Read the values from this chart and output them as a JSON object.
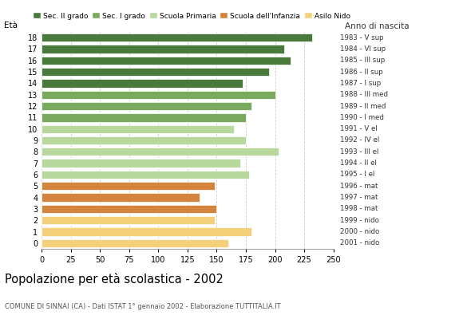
{
  "ages": [
    18,
    17,
    16,
    15,
    14,
    13,
    12,
    11,
    10,
    9,
    8,
    7,
    6,
    5,
    4,
    3,
    2,
    1,
    0
  ],
  "values": [
    232,
    208,
    213,
    195,
    172,
    200,
    180,
    175,
    165,
    175,
    203,
    170,
    178,
    148,
    135,
    150,
    148,
    180,
    160
  ],
  "right_labels": [
    "1983 - V sup",
    "1984 - VI sup",
    "1985 - III sup",
    "1986 - II sup",
    "1987 - I sup",
    "1988 - III med",
    "1989 - II med",
    "1990 - I med",
    "1991 - V el",
    "1992 - IV el",
    "1993 - III el",
    "1994 - II el",
    "1995 - I el",
    "1996 - mat",
    "1997 - mat",
    "1998 - mat",
    "1999 - nido",
    "2000 - nido",
    "2001 - nido"
  ],
  "bar_colors": [
    "#4a7a3b",
    "#4a7a3b",
    "#4a7a3b",
    "#4a7a3b",
    "#4a7a3b",
    "#7aaa5e",
    "#7aaa5e",
    "#7aaa5e",
    "#b8d89e",
    "#b8d89e",
    "#b8d89e",
    "#b8d89e",
    "#b8d89e",
    "#d4843c",
    "#d4843c",
    "#d4843c",
    "#f5d07a",
    "#f5d07a",
    "#f5d07a"
  ],
  "legend_labels": [
    "Sec. II grado",
    "Sec. I grado",
    "Scuola Primaria",
    "Scuola dell'Infanzia",
    "Asilo Nido"
  ],
  "legend_colors": [
    "#4a7a3b",
    "#7aaa5e",
    "#b8d89e",
    "#d4843c",
    "#f5d07a"
  ],
  "title": "Popolazione per età scolastica - 2002",
  "subtitle": "COMUNE DI SINNAI (CA) - Dati ISTAT 1° gennaio 2002 - Elaborazione TUTTITALIA.IT",
  "label_eta": "Età",
  "label_anno": "Anno di nascita",
  "xlim": [
    0,
    250
  ],
  "xticks": [
    0,
    25,
    50,
    75,
    100,
    125,
    150,
    175,
    200,
    225,
    250
  ],
  "background_color": "#ffffff",
  "grid_color": "#cccccc"
}
